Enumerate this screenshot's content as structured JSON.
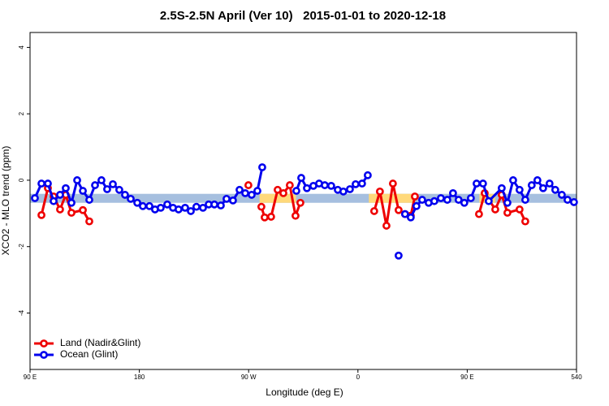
{
  "chart_data": {
    "type": "line",
    "title": "2.5S-2.5N April (Ver 10)   2015-01-01 to 2020-12-18",
    "x_label": "Longitude (deg E)",
    "y_label": "XCO2 - MLO trend (ppm)",
    "xlim": [
      90,
      540
    ],
    "ylim": [
      -5.7,
      4.45
    ],
    "xticks": [
      {
        "value": 90,
        "label": "90 E"
      },
      180,
      {
        "value": 270,
        "label": "90 W"
      },
      {
        "value": 360,
        "label": "0"
      },
      {
        "value": 450,
        "label": "90 E"
      },
      540
    ],
    "yticks": [
      4,
      2,
      0,
      -2,
      -4
    ],
    "legend": "bottom-left",
    "band": {
      "ylim": [
        -0.68,
        -0.41
      ],
      "color": "#a6bfdf"
    },
    "land_bands": {
      "color": "#ffd97a",
      "ranges": [
        [
          279,
          309
        ],
        [
          369,
          406
        ],
        [
          460,
          473
        ]
      ]
    },
    "series": [
      {
        "name": "Land (Nadir&Glint)",
        "color": "#ee0000",
        "x": [
          99.4,
          104.7,
          109.4,
          114.7,
          119.4,
          124.1,
          133.5,
          138.8,
          null,
          269.8,
          null,
          280.5,
          283.2,
          288.5,
          293.9,
          298.6,
          303.9,
          308.6,
          312.6,
          null,
          373.4,
          378.1,
          383.5,
          388.8,
          393.5,
          398.8,
          403.5,
          406.9,
          null,
          459.7,
          464.4,
          473.1,
          478.4,
          483.1,
          493.1,
          497.8
        ],
        "values": [
          -1.05,
          -0.24,
          -0.49,
          -0.88,
          -0.44,
          -0.98,
          -0.9,
          -1.24,
          null,
          -0.15,
          null,
          -0.8,
          -1.12,
          -1.1,
          -0.29,
          -0.39,
          -0.15,
          -1.07,
          -0.68,
          null,
          -0.93,
          -0.34,
          -1.37,
          -0.1,
          -0.9,
          -1.02,
          -1.07,
          -0.49,
          null,
          -1.02,
          -0.39,
          -0.88,
          -0.44,
          -0.98,
          -0.88,
          -1.24
        ]
      },
      {
        "name": "Ocean (Glint)",
        "color": "#0000ee",
        "x": [
          94.0,
          99.4,
          104.7,
          109.4,
          114.7,
          119.4,
          124.1,
          128.8,
          133.5,
          138.8,
          143.5,
          148.8,
          153.5,
          158.2,
          163.5,
          168.2,
          172.9,
          178.3,
          182.9,
          188.3,
          192.9,
          197.6,
          203.0,
          207.7,
          212.3,
          217.7,
          222.4,
          227.0,
          232.4,
          237.1,
          241.8,
          247.1,
          251.8,
          257.1,
          262.5,
          267.2,
          272.5,
          277.2,
          281.2,
          null,
          309.3,
          313.3,
          318.0,
          323.3,
          328.0,
          332.7,
          338.0,
          343.4,
          348.0,
          353.4,
          358.1,
          363.4,
          368.1,
          null,
          393.5,
          null,
          398.8,
          403.5,
          408.2,
          412.9,
          418.2,
          422.9,
          428.3,
          433.6,
          438.3,
          442.9,
          447.6,
          453.0,
          457.7,
          463.0,
          467.7,
          478.4,
          483.1,
          487.8,
          493.1,
          497.8,
          503.1,
          507.8,
          512.5,
          517.8,
          522.5,
          527.9,
          532.6,
          537.9
        ],
        "values": [
          -0.54,
          -0.1,
          -0.1,
          -0.63,
          -0.44,
          -0.24,
          -0.68,
          0,
          -0.32,
          -0.59,
          -0.15,
          0,
          -0.27,
          -0.12,
          -0.29,
          -0.44,
          -0.56,
          -0.68,
          -0.78,
          -0.78,
          -0.88,
          -0.83,
          -0.73,
          -0.83,
          -0.88,
          -0.83,
          -0.93,
          -0.8,
          -0.83,
          -0.73,
          -0.73,
          -0.76,
          -0.56,
          -0.61,
          -0.29,
          -0.39,
          -0.44,
          -0.32,
          0.39,
          null,
          -0.32,
          0.07,
          -0.24,
          -0.17,
          -0.1,
          -0.15,
          -0.17,
          -0.29,
          -0.34,
          -0.27,
          -0.12,
          -0.1,
          0.15,
          null,
          -2.27,
          null,
          -1.02,
          -1.12,
          -0.78,
          -0.59,
          -0.68,
          -0.63,
          -0.54,
          -0.59,
          -0.39,
          -0.59,
          -0.68,
          -0.54,
          -0.1,
          -0.1,
          -0.63,
          -0.24,
          -0.68,
          0,
          -0.29,
          -0.59,
          -0.15,
          0,
          -0.24,
          -0.1,
          -0.29,
          -0.44,
          -0.59,
          -0.66
        ]
      }
    ]
  }
}
